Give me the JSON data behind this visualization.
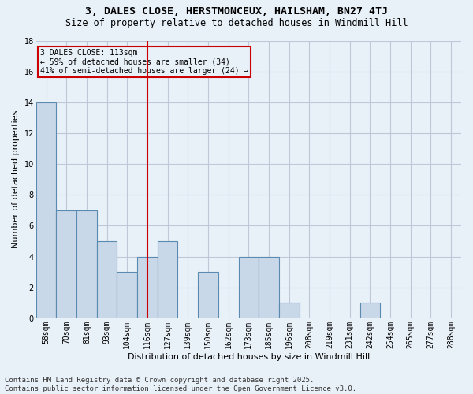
{
  "title1": "3, DALES CLOSE, HERSTMONCEUX, HAILSHAM, BN27 4TJ",
  "title2": "Size of property relative to detached houses in Windmill Hill",
  "xlabel": "Distribution of detached houses by size in Windmill Hill",
  "ylabel": "Number of detached properties",
  "categories": [
    "58sqm",
    "70sqm",
    "81sqm",
    "93sqm",
    "104sqm",
    "116sqm",
    "127sqm",
    "139sqm",
    "150sqm",
    "162sqm",
    "173sqm",
    "185sqm",
    "196sqm",
    "208sqm",
    "219sqm",
    "231sqm",
    "242sqm",
    "254sqm",
    "265sqm",
    "277sqm",
    "288sqm"
  ],
  "values": [
    14,
    7,
    7,
    5,
    3,
    4,
    5,
    0,
    3,
    0,
    4,
    4,
    1,
    0,
    0,
    0,
    1,
    0,
    0,
    0,
    0
  ],
  "bar_color": "#c8d8e8",
  "bar_edge_color": "#5a8ab0",
  "bg_color": "#e8f0f8",
  "grid_color": "#c0c8d8",
  "vline_x_index": 5,
  "vline_color": "#cc0000",
  "annotation_text": "3 DALES CLOSE: 113sqm\n← 59% of detached houses are smaller (34)\n41% of semi-detached houses are larger (24) →",
  "annotation_box_color": "#cc0000",
  "ylim": [
    0,
    18
  ],
  "yticks": [
    0,
    2,
    4,
    6,
    8,
    10,
    12,
    14,
    16,
    18
  ],
  "footer1": "Contains HM Land Registry data © Crown copyright and database right 2025.",
  "footer2": "Contains public sector information licensed under the Open Government Licence v3.0.",
  "title_fontsize": 9.5,
  "subtitle_fontsize": 8.5,
  "axis_label_fontsize": 8,
  "tick_fontsize": 7,
  "annotation_fontsize": 7,
  "footer_fontsize": 6.5
}
